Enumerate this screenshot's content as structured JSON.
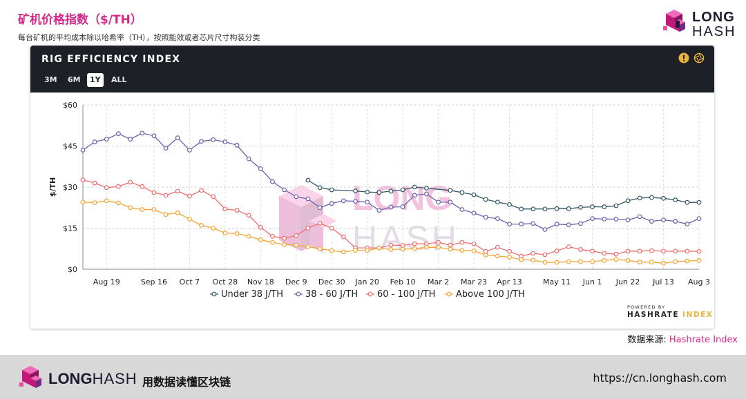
{
  "header": {
    "title": "矿机价格指数（$/TH）",
    "subtitle": "每台矿机的平均成本除以哈希率（TH），按照能效或者芯片尺寸构装分类"
  },
  "logo": {
    "line1": "LONG",
    "line2": "HASH"
  },
  "card": {
    "title": "RIG EFFICIENCY INDEX",
    "ranges": [
      "3M",
      "6M",
      "1Y",
      "ALL"
    ],
    "active_range": "1Y",
    "powered_by": "POWERED BY",
    "hashrate": "HASHRATE",
    "index": "INDEX"
  },
  "watermark": {
    "line1": "LONG",
    "line2": "HASH"
  },
  "source": {
    "label": "数据来源: ",
    "name": "Hashrate Index"
  },
  "footer": {
    "brand_bold": "LONG",
    "brand_light": "HASH",
    "slogan": "用数据读懂区块链",
    "url": "https://cn.longhash.com"
  },
  "colors": {
    "brand_pink": "#d4298a",
    "under38": "#2f5566",
    "r38_60": "#6b5fab",
    "r60_100": "#ee6b6b",
    "above100": "#f5a431"
  },
  "chart_data": {
    "type": "line",
    "ylabel": "$/TH",
    "ylim": [
      0,
      60
    ],
    "yticks": [
      0,
      15,
      30,
      45,
      60
    ],
    "ytick_labels": [
      "$0",
      "$15",
      "$30",
      "$45",
      "$60"
    ],
    "x_domain": [
      0,
      52
    ],
    "xticks": [
      {
        "label": "Aug 19",
        "x": 2
      },
      {
        "label": "Sep 16",
        "x": 6
      },
      {
        "label": "Oct 7",
        "x": 9
      },
      {
        "label": "Oct 28",
        "x": 12
      },
      {
        "label": "Nov 18",
        "x": 15
      },
      {
        "label": "Dec 9",
        "x": 18
      },
      {
        "label": "Dec 30",
        "x": 21
      },
      {
        "label": "Jan 20",
        "x": 24
      },
      {
        "label": "Feb 10",
        "x": 27
      },
      {
        "label": "Mar 2",
        "x": 30
      },
      {
        "label": "Mar 23",
        "x": 33
      },
      {
        "label": "Apr 13",
        "x": 36
      },
      {
        "label": "May 11",
        "x": 40
      },
      {
        "label": "Jun 1",
        "x": 43
      },
      {
        "label": "Jun 22",
        "x": 46
      },
      {
        "label": "Jul 13",
        "x": 49
      },
      {
        "label": "Aug 3",
        "x": 52
      }
    ],
    "grid": true,
    "legend_position": "bottom",
    "series": [
      {
        "name": "Under 38 J/TH",
        "x": [
          19,
          20,
          21,
          23,
          24,
          25,
          26,
          27,
          28,
          29,
          31,
          32,
          33,
          34,
          35,
          36,
          37,
          38,
          39,
          40,
          41,
          42,
          43,
          44,
          45,
          46,
          47,
          48,
          49,
          50,
          51,
          52
        ],
        "values": [
          32.5,
          29.8,
          29.0,
          28.6,
          28.2,
          28.0,
          28.5,
          29.0,
          30.0,
          29.6,
          28.8,
          28.0,
          27.2,
          25.5,
          24.5,
          23.6,
          22.0,
          22.0,
          22.0,
          22.1,
          22.1,
          22.6,
          22.8,
          22.8,
          23.2,
          25.0,
          26.0,
          26.2,
          25.9,
          25.3,
          24.4,
          24.4
        ]
      },
      {
        "name": "38 - 60 J/TH",
        "x": [
          0,
          1,
          2,
          3,
          4,
          5,
          6,
          7,
          8,
          9,
          10,
          11,
          12,
          13,
          14,
          15,
          16,
          17,
          18,
          19,
          20,
          21,
          22,
          23,
          24,
          25,
          26,
          27,
          28,
          29,
          30,
          31,
          32,
          33,
          34,
          35,
          36,
          37,
          38,
          39,
          40,
          41,
          42,
          43,
          44,
          45,
          46,
          47,
          48,
          49,
          50,
          51,
          52
        ],
        "values": [
          43.5,
          46.5,
          47.5,
          49.5,
          47.5,
          49.7,
          48.7,
          44.2,
          48.0,
          43.5,
          46.7,
          47.3,
          46.5,
          45.3,
          40.3,
          36.7,
          32.0,
          29.0,
          26.5,
          25.7,
          22.5,
          24.0,
          25.0,
          24.8,
          24.5,
          21.5,
          22.7,
          22.8,
          27.0,
          27.5,
          24.5,
          24.5,
          21.8,
          20.5,
          19.0,
          18.5,
          16.5,
          16.5,
          16.7,
          14.5,
          16.5,
          16.2,
          16.7,
          18.5,
          18.3,
          18.3,
          18.0,
          19.2,
          17.5,
          18.0,
          17.5,
          16.5,
          18.5
        ]
      },
      {
        "name": "60 - 100 J/TH",
        "x": [
          0,
          1,
          2,
          3,
          4,
          5,
          6,
          7,
          8,
          9,
          10,
          11,
          12,
          13,
          14,
          15,
          16,
          17,
          18,
          19,
          20,
          21,
          22,
          23,
          24,
          25,
          26,
          27,
          28,
          29,
          30,
          31,
          32,
          33,
          34,
          35,
          36,
          37,
          38,
          39,
          40,
          41,
          42,
          43,
          44,
          45,
          46,
          47,
          48,
          49,
          50,
          51,
          52
        ],
        "values": [
          32.6,
          31.5,
          29.8,
          30.2,
          31.8,
          30.2,
          28.0,
          27.0,
          28.5,
          26.7,
          28.8,
          26.5,
          22.0,
          21.5,
          19.7,
          15.3,
          12.0,
          11.3,
          12.3,
          15.0,
          16.8,
          15.0,
          11.8,
          7.8,
          7.8,
          7.8,
          8.8,
          8.7,
          9.3,
          9.3,
          9.8,
          8.8,
          9.8,
          9.3,
          6.5,
          8.0,
          6.5,
          4.8,
          5.8,
          5.3,
          6.7,
          8.2,
          7.2,
          6.6,
          5.8,
          5.5,
          6.6,
          6.6,
          6.8,
          6.6,
          6.6,
          6.6,
          6.5
        ]
      },
      {
        "name": "Above 100 J/TH",
        "x": [
          0,
          1,
          2,
          3,
          4,
          5,
          6,
          7,
          8,
          9,
          10,
          11,
          12,
          13,
          14,
          15,
          16,
          17,
          18,
          19,
          20,
          21,
          22,
          23,
          24,
          25,
          26,
          27,
          28,
          29,
          30,
          31,
          32,
          33,
          34,
          35,
          36,
          37,
          38,
          39,
          40,
          41,
          42,
          43,
          44,
          45,
          46,
          47,
          48,
          49,
          50,
          51,
          52
        ],
        "values": [
          24.5,
          24.3,
          25.0,
          24.2,
          22.5,
          21.8,
          21.8,
          20.0,
          20.6,
          18.3,
          16.0,
          15.0,
          13.2,
          13.0,
          12.0,
          10.8,
          9.8,
          9.0,
          8.8,
          8.2,
          7.5,
          6.8,
          6.3,
          6.9,
          6.8,
          7.8,
          7.2,
          7.3,
          7.5,
          8.0,
          8.0,
          7.3,
          6.9,
          6.7,
          5.2,
          4.8,
          4.4,
          3.5,
          3.3,
          2.5,
          2.5,
          2.8,
          2.8,
          2.8,
          3.2,
          3.6,
          3.2,
          2.6,
          2.6,
          2.2,
          2.8,
          3.0,
          3.2
        ]
      }
    ]
  }
}
